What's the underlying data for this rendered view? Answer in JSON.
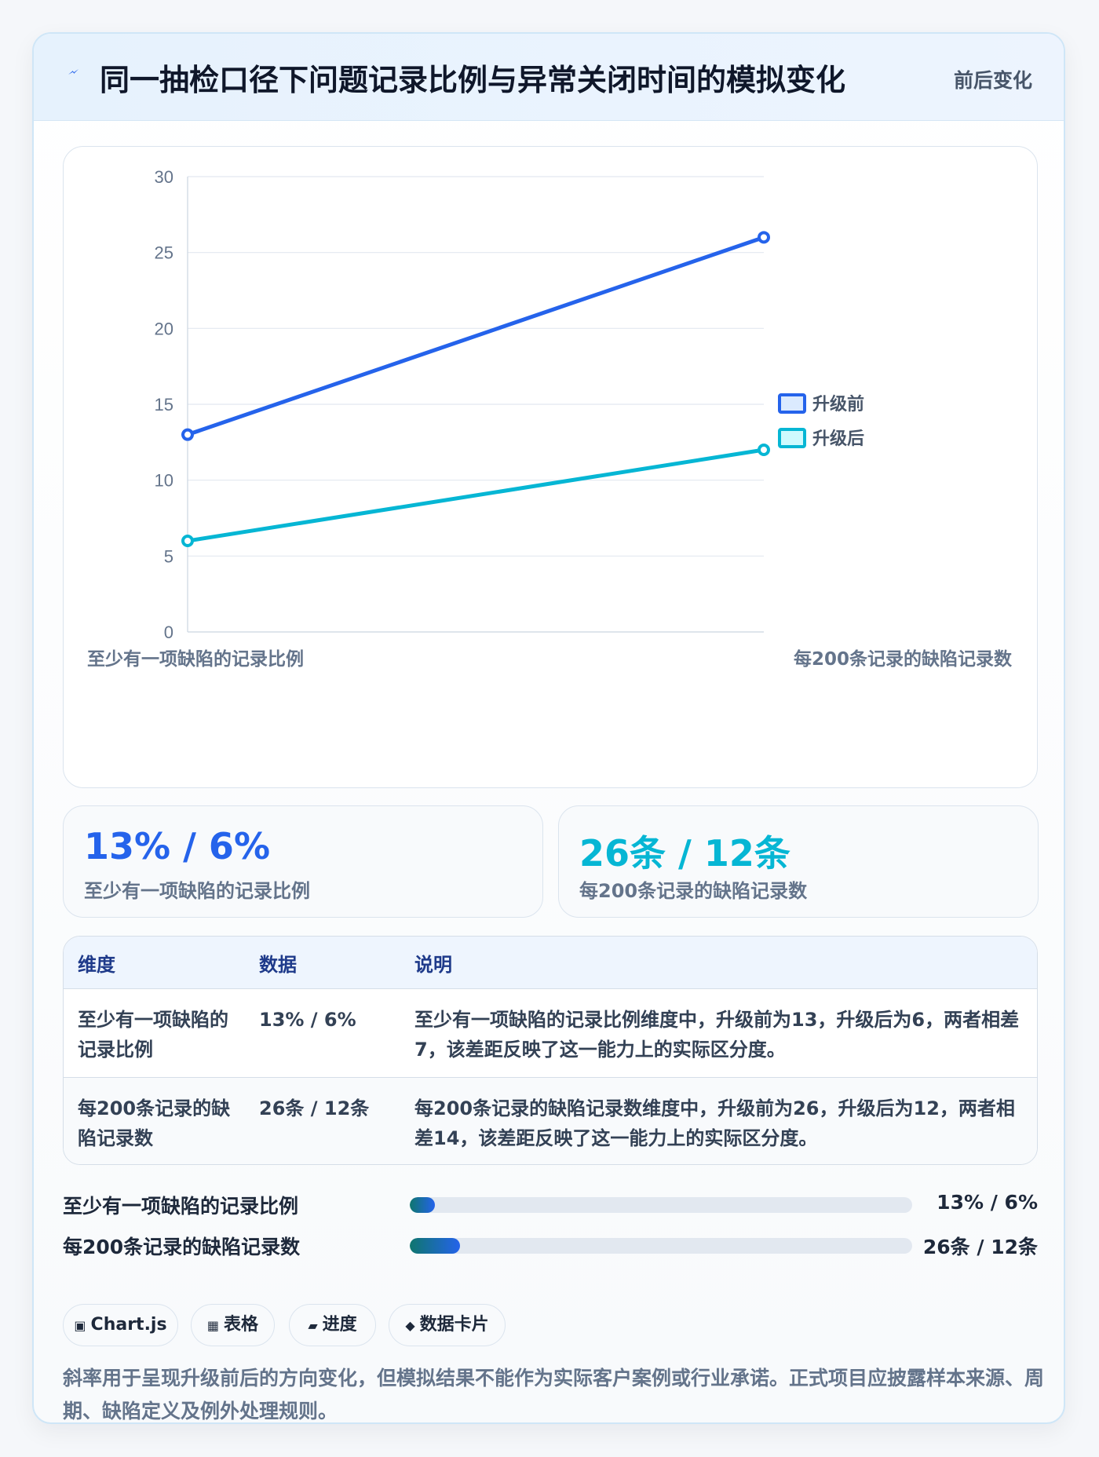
{
  "header": {
    "title": "同一抽检口径下问题记录比例与异常关闭时间的模拟变化",
    "badge": "前后变化"
  },
  "colors": {
    "before": "#2563eb",
    "after": "#06b6d4",
    "before_fill": "#dbeafe",
    "after_fill": "#cffafe"
  },
  "chart_data": {
    "type": "line",
    "categories": [
      "至少有一项缺陷的记录比例",
      "每200条记录的缺陷记录数"
    ],
    "series": [
      {
        "name": "升级前",
        "values": [
          13,
          26
        ]
      },
      {
        "name": "升级后",
        "values": [
          6,
          12
        ]
      }
    ],
    "ylim": [
      0,
      30
    ],
    "yticks": [
      "0",
      "5",
      "10",
      "15",
      "20",
      "25",
      "30"
    ],
    "legend": "right",
    "grid": true
  },
  "stats": [
    {
      "value": "13% / 6%",
      "label": "至少有一项缺陷的记录比例"
    },
    {
      "value": "26条 / 12条",
      "label": "每200条记录的缺陷记录数"
    }
  ],
  "table": {
    "headers": [
      "维度",
      "数据",
      "说明"
    ],
    "rows": [
      {
        "dim": "至少有一项缺陷的记录比例",
        "data": "13% / 6%",
        "note": "至少有一项缺陷的记录比例维度中，升级前为13，升级后为6，两者相差7，该差距反映了这一能力上的实际区分度。"
      },
      {
        "dim": "每200条记录的缺陷记录数",
        "data": "26条 / 12条",
        "note": "每200条记录的缺陷记录数维度中，升级前为26，升级后为12，两者相差14，该差距反映了这一能力上的实际区分度。"
      }
    ]
  },
  "progress": [
    {
      "label": "至少有一项缺陷的记录比例",
      "value_text": "13% / 6%",
      "fraction": 0.05
    },
    {
      "label": "每200条记录的缺陷记录数",
      "value_text": "26条 / 12条",
      "fraction": 0.1
    }
  ],
  "chips": [
    {
      "icon": "▣",
      "label": "Chart.js"
    },
    {
      "icon": "▦",
      "label": "表格"
    },
    {
      "icon": "▰",
      "label": "进度"
    },
    {
      "icon": "◆",
      "label": "数据卡片"
    }
  ],
  "footnote": "斜率用于呈现升级前后的方向变化，但模拟结果不能作为实际客户案例或行业承诺。正式项目应披露样本来源、周期、缺陷定义及例外处理规则。"
}
